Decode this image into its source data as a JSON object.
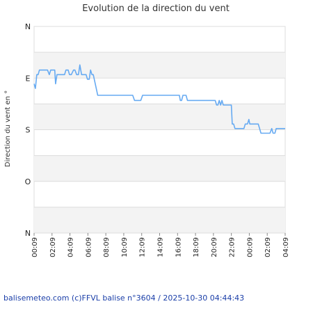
{
  "chart_data": {
    "type": "line",
    "title": "Evolution de la direction du vent",
    "ylabel": "Direction du vent en °",
    "xlabel": "",
    "y_tick_labels": [
      {
        "label": "N",
        "deg": 360
      },
      {
        "label": "O",
        "deg": 270
      },
      {
        "label": "S",
        "deg": 180
      },
      {
        "label": "E",
        "deg": 90
      },
      {
        "label": "N",
        "deg": 0
      }
    ],
    "x_tick_labels": [
      "00:09",
      "02:09",
      "04:09",
      "06:09",
      "08:09",
      "10:09",
      "12:09",
      "14:09",
      "16:09",
      "18:09",
      "20:09",
      "22:09",
      "00:09",
      "02:09",
      "04:09"
    ],
    "x_unit": "hours since 00:09",
    "xlim": [
      0,
      28
    ],
    "ylim": [
      0,
      360
    ],
    "grid": true,
    "series": [
      {
        "color": "#66aaf2",
        "points": [
          [
            0.0,
            100
          ],
          [
            0.15,
            108
          ],
          [
            0.3,
            84
          ],
          [
            0.45,
            84
          ],
          [
            0.6,
            76
          ],
          [
            0.75,
            76
          ],
          [
            1.2,
            76
          ],
          [
            1.5,
            76
          ],
          [
            1.7,
            84
          ],
          [
            1.85,
            76
          ],
          [
            2.1,
            76
          ],
          [
            2.3,
            76
          ],
          [
            2.4,
            100
          ],
          [
            2.55,
            84
          ],
          [
            2.75,
            84
          ],
          [
            3.1,
            84
          ],
          [
            3.4,
            84
          ],
          [
            3.55,
            76
          ],
          [
            3.8,
            76
          ],
          [
            3.95,
            84
          ],
          [
            4.15,
            84
          ],
          [
            4.4,
            76
          ],
          [
            4.55,
            76
          ],
          [
            4.75,
            84
          ],
          [
            4.95,
            84
          ],
          [
            5.1,
            67
          ],
          [
            5.3,
            84
          ],
          [
            5.5,
            84
          ],
          [
            5.8,
            84
          ],
          [
            5.95,
            92
          ],
          [
            6.15,
            92
          ],
          [
            6.3,
            76
          ],
          [
            6.45,
            84
          ],
          [
            6.6,
            84
          ],
          [
            6.85,
            102
          ],
          [
            7.1,
            120
          ],
          [
            7.5,
            120
          ],
          [
            9.5,
            120
          ],
          [
            10.5,
            120
          ],
          [
            11.0,
            120
          ],
          [
            11.2,
            129
          ],
          [
            11.9,
            129
          ],
          [
            12.1,
            120
          ],
          [
            14.5,
            120
          ],
          [
            16.2,
            120
          ],
          [
            16.3,
            129
          ],
          [
            16.45,
            129
          ],
          [
            16.6,
            120
          ],
          [
            16.8,
            120
          ],
          [
            16.95,
            120
          ],
          [
            17.1,
            129
          ],
          [
            20.0,
            129
          ],
          [
            20.2,
            129
          ],
          [
            20.35,
            137
          ],
          [
            20.5,
            137
          ],
          [
            20.65,
            129
          ],
          [
            20.8,
            137
          ],
          [
            20.95,
            129
          ],
          [
            21.1,
            137
          ],
          [
            22.0,
            137
          ],
          [
            22.1,
            170
          ],
          [
            22.25,
            170
          ],
          [
            22.4,
            178
          ],
          [
            23.4,
            178
          ],
          [
            23.55,
            170
          ],
          [
            23.8,
            170
          ],
          [
            23.95,
            162
          ],
          [
            24.05,
            170
          ],
          [
            25.0,
            170
          ],
          [
            25.3,
            186
          ],
          [
            25.5,
            186
          ],
          [
            26.3,
            186
          ],
          [
            26.5,
            178
          ],
          [
            26.65,
            186
          ],
          [
            26.85,
            186
          ],
          [
            27.0,
            178
          ],
          [
            28.0,
            178
          ]
        ]
      }
    ]
  },
  "footer": {
    "credit": "balisemeteo.com (c)FFVL balise n°3604 / 2025-10-30 04:44:43"
  }
}
